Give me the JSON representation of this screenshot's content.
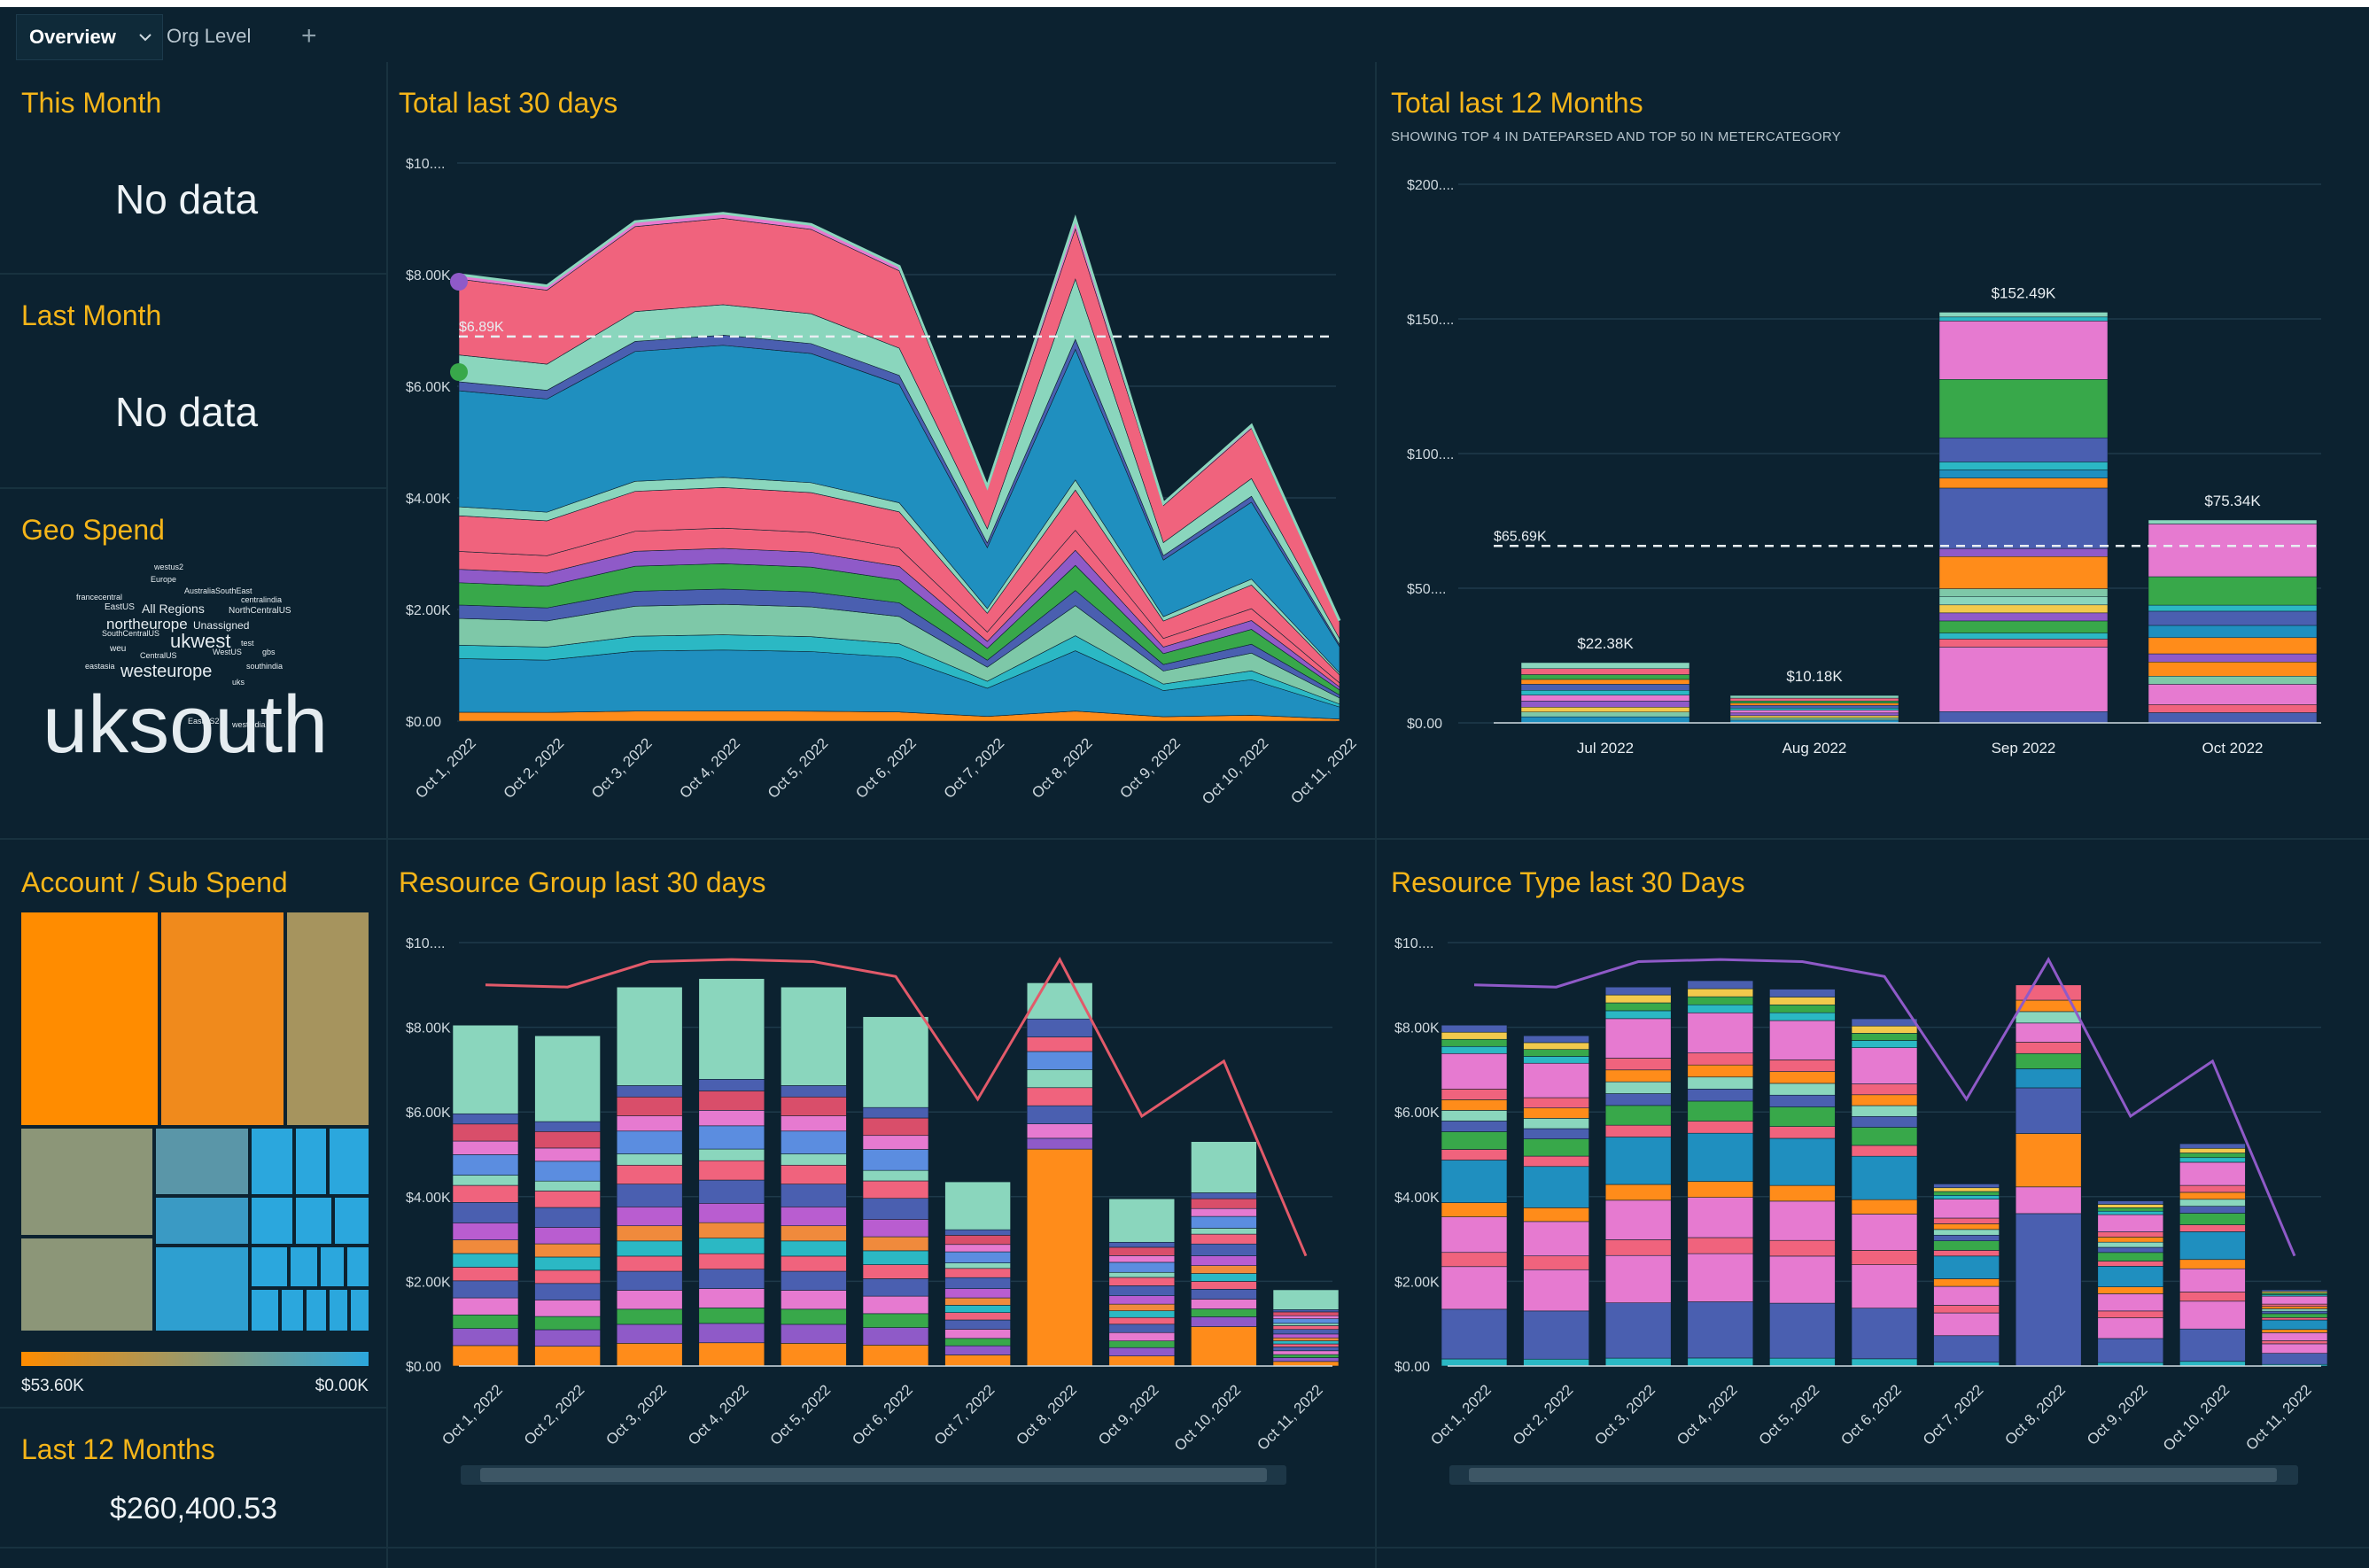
{
  "tabs": {
    "overview": "Overview",
    "org": "Org Level",
    "add": "+"
  },
  "this_month": {
    "title": "This Month",
    "value": "No data"
  },
  "last_month": {
    "title": "Last Month",
    "value": "No data"
  },
  "geo": {
    "title": "Geo Spend",
    "words": [
      {
        "t": "westus2",
        "s": 9
      },
      {
        "t": "Europe",
        "s": 9
      },
      {
        "t": "AustraliaSouthEast",
        "s": 9
      },
      {
        "t": "francecentral",
        "s": 9
      },
      {
        "t": "centralindia",
        "s": 9
      },
      {
        "t": "EastUS",
        "s": 10
      },
      {
        "t": "All Regions",
        "s": 14
      },
      {
        "t": "NorthCentralUS",
        "s": 10
      },
      {
        "t": "northeurope",
        "s": 17
      },
      {
        "t": "Unassigned",
        "s": 12
      },
      {
        "t": "SouthCentralUS",
        "s": 9
      },
      {
        "t": "ukwest",
        "s": 22
      },
      {
        "t": "test",
        "s": 9
      },
      {
        "t": "weu",
        "s": 10
      },
      {
        "t": "WestUS",
        "s": 9
      },
      {
        "t": "gbs",
        "s": 9
      },
      {
        "t": "CentralUS",
        "s": 9
      },
      {
        "t": "eastasia",
        "s": 9
      },
      {
        "t": "westeurope",
        "s": 20
      },
      {
        "t": "southindia",
        "s": 9
      },
      {
        "t": "uks",
        "s": 9
      },
      {
        "t": "uksouth",
        "s": 92
      },
      {
        "t": "EastUS2",
        "s": 9
      },
      {
        "t": "westindia",
        "s": 9
      }
    ]
  },
  "account": {
    "title": "Account / Sub Spend",
    "legend_min": "$53.60K",
    "legend_max": "$0.00K",
    "colors": {
      "high": "#ff8c00",
      "low": "#2ba7dd"
    }
  },
  "last12": {
    "title": "Last 12 Months",
    "value": "$260,400.53"
  },
  "chart_data": [
    {
      "id": "total30",
      "type": "area",
      "title": "Total last 30 days",
      "x": [
        "Oct 1, 2022",
        "Oct 2, 2022",
        "Oct 3, 2022",
        "Oct 4, 2022",
        "Oct 5, 2022",
        "Oct 6, 2022",
        "Oct 7, 2022",
        "Oct 8, 2022",
        "Oct 9, 2022",
        "Oct 10, 2022",
        "Oct 11, 2022"
      ],
      "totals": [
        8000,
        7800,
        8950,
        9100,
        8900,
        8150,
        4200,
        9000,
        3900,
        5300,
        1800
      ],
      "yticks": [
        "$0.00",
        "$2.00K",
        "$4.00K",
        "$6.00K",
        "$8.00K",
        "$10...."
      ],
      "ylim": [
        0,
        10000
      ],
      "reference_line": {
        "label": "$6.89K",
        "value": 6890
      }
    },
    {
      "id": "total12m",
      "type": "bar",
      "title": "Total last 12 Months",
      "subtitle": "SHOWING TOP 4 IN DATEPARSED AND TOP 50 IN METERCATEGORY",
      "categories": [
        "Jul 2022",
        "Aug 2022",
        "Sep 2022",
        "Oct 2022"
      ],
      "values": [
        22380,
        10180,
        152490,
        75340
      ],
      "value_labels": [
        "$22.38K",
        "$10.18K",
        "$152.49K",
        "$75.34K"
      ],
      "yticks": [
        "$0.00",
        "$50....",
        "$100....",
        "$150....",
        "$200...."
      ],
      "ylim": [
        0,
        200000
      ],
      "reference_line": {
        "label": "$65.69K",
        "value": 65690
      }
    },
    {
      "id": "rg30",
      "type": "bar",
      "title": "Resource Group last 30 days",
      "categories": [
        "Oct 1, 2022",
        "Oct 2, 2022",
        "Oct 3, 2022",
        "Oct 4, 2022",
        "Oct 5, 2022",
        "Oct 6, 2022",
        "Oct 7, 2022",
        "Oct 8, 2022",
        "Oct 9, 2022",
        "Oct 10, 2022",
        "Oct 11, 2022"
      ],
      "values": [
        8050,
        7800,
        8950,
        9150,
        8950,
        8250,
        4350,
        9050,
        3950,
        5300,
        1800
      ],
      "line": [
        9000,
        8950,
        9550,
        9600,
        9550,
        9200,
        6300,
        9600,
        5900,
        7200,
        2600
      ],
      "yticks": [
        "$0.00",
        "$2.00K",
        "$4.00K",
        "$6.00K",
        "$8.00K",
        "$10...."
      ],
      "ylim": [
        0,
        10000
      ]
    },
    {
      "id": "rt30",
      "type": "bar",
      "title": "Resource Type last 30 Days",
      "categories": [
        "Oct 1, 2022",
        "Oct 2, 2022",
        "Oct 3, 2022",
        "Oct 4, 2022",
        "Oct 5, 2022",
        "Oct 6, 2022",
        "Oct 7, 2022",
        "Oct 8, 2022",
        "Oct 9, 2022",
        "Oct 10, 2022",
        "Oct 11, 2022"
      ],
      "values": [
        8050,
        7800,
        8950,
        9100,
        8900,
        8200,
        4300,
        9000,
        3900,
        5250,
        1800
      ],
      "line": [
        9000,
        8950,
        9550,
        9600,
        9550,
        9200,
        6300,
        9600,
        5900,
        7200,
        2600
      ],
      "yticks": [
        "$0.00",
        "$2.00K",
        "$4.00K",
        "$6.00K",
        "$8.00K",
        "$10...."
      ],
      "ylim": [
        0,
        10000
      ]
    }
  ]
}
